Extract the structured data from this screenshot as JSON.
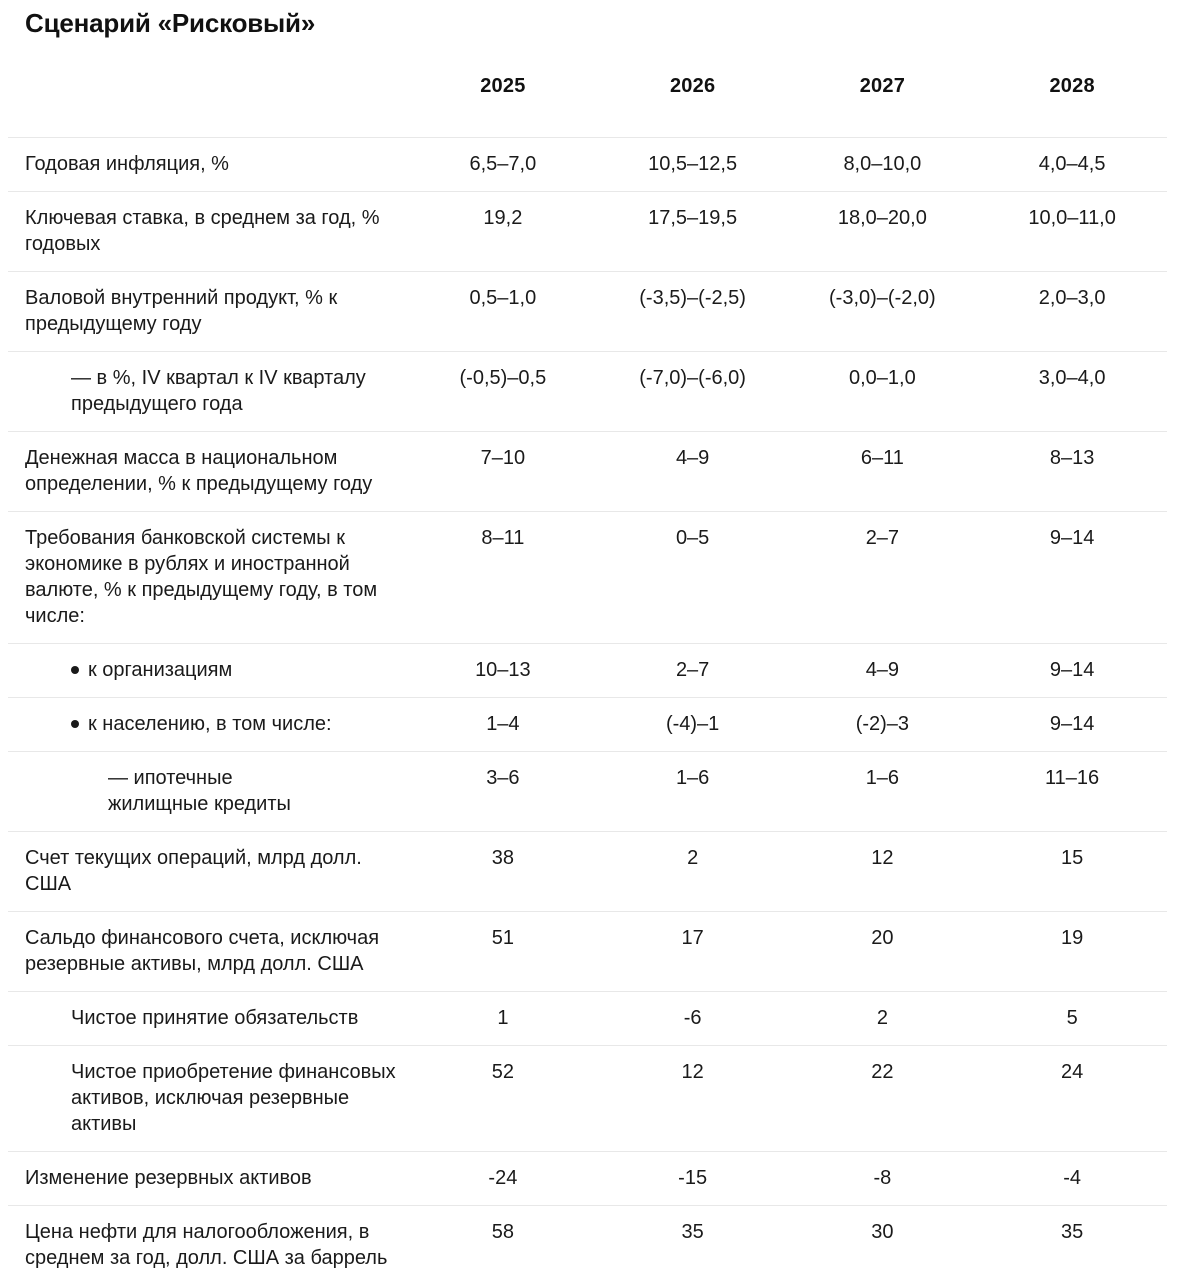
{
  "page": {
    "title": "Сценарий «Рисковый»"
  },
  "theme": {
    "text": "#1a1a1a",
    "title": "#111111",
    "divider": "#e8e8e8",
    "background": "#ffffff"
  },
  "chart_data": {
    "type": "table",
    "title": "Сценарий «Рисковый»",
    "categories": [
      "2025",
      "2026",
      "2027",
      "2028"
    ],
    "series": [
      {
        "name": "Годовая инфляция, %",
        "values": [
          "6,5–7,0",
          "10,5–12,5",
          "8,0–10,0",
          "4,0–4,5"
        ]
      },
      {
        "name": "Ключевая ставка, в среднем за год, % годовых",
        "values": [
          "19,2",
          "17,5–19,5",
          "18,0–20,0",
          "10,0–11,0"
        ]
      },
      {
        "name": "Валовой внутренний продукт, % к предыдущему году",
        "values": [
          "0,5–1,0",
          "(-3,5)–(-2,5)",
          "(-3,0)–(-2,0)",
          "2,0–3,0"
        ]
      },
      {
        "name": "— в %, IV квартал к IV кварталу предыдущего года",
        "values": [
          "(-0,5)–0,5",
          "(-7,0)–(-6,0)",
          "0,0–1,0",
          "3,0–4,0"
        ]
      },
      {
        "name": "Денежная масса в национальном определении, % к предыдущему году",
        "values": [
          "7–10",
          "4–9",
          "6–11",
          "8–13"
        ]
      },
      {
        "name": "Требования банковской системы к экономике в рублях и иностранной валюте, % к предыдущему году, в том числе:",
        "values": [
          "8–11",
          "0–5",
          "2–7",
          "9–14"
        ]
      },
      {
        "name": "к организациям",
        "values": [
          "10–13",
          "2–7",
          "4–9",
          "9–14"
        ]
      },
      {
        "name": "к населению, в том числе:",
        "values": [
          "1–4",
          "(-4)–1",
          "(-2)–3",
          "9–14"
        ]
      },
      {
        "name": "— ипотечные жилищные кредиты",
        "values": [
          "3–6",
          "1–6",
          "1–6",
          "11–16"
        ]
      },
      {
        "name": "Счет текущих операций, млрд долл. США",
        "values": [
          "38",
          "2",
          "12",
          "15"
        ]
      },
      {
        "name": "Сальдо финансового счета, исключая резервные активы, млрд долл. США",
        "values": [
          "51",
          "17",
          "20",
          "19"
        ]
      },
      {
        "name": "Чистое принятие обязательств",
        "values": [
          "1",
          "-6",
          "2",
          "5"
        ]
      },
      {
        "name": "Чистое приобретение финансовых активов, исключая резервные активы",
        "values": [
          "52",
          "12",
          "22",
          "24"
        ]
      },
      {
        "name": "Изменение резервных активов",
        "values": [
          "-24",
          "-15",
          "-8",
          "-4"
        ]
      },
      {
        "name": "Цена нефти для налогообложения, в среднем за год, долл. США за баррель",
        "values": [
          "58",
          "35",
          "30",
          "35"
        ]
      }
    ]
  },
  "table": {
    "years": [
      "2025",
      "2026",
      "2027",
      "2028"
    ],
    "rows": [
      {
        "label": "Годовая инфляция,  %",
        "indent": 0,
        "marker": "none",
        "values": [
          "6,5–7,0",
          "10,5–12,5",
          "8,0–10,0",
          "4,0–4,5"
        ]
      },
      {
        "label": "Ключевая ставка, в среднем за год, % годовых",
        "indent": 0,
        "marker": "none",
        "values": [
          "19,2",
          "17,5–19,5",
          "18,0–20,0",
          "10,0–11,0"
        ]
      },
      {
        "label": "Валовой внутренний продукт, % к предыдущему году",
        "indent": 0,
        "marker": "none",
        "values": [
          "0,5–1,0",
          "(-3,5)–(-2,5)",
          "(-3,0)–(-2,0)",
          "2,0–3,0"
        ]
      },
      {
        "label": "— в %, IV квартал к IV кварталу предыдущего года",
        "indent": 1,
        "marker": "none",
        "values": [
          "(-0,5)–0,5",
          "(-7,0)–(-6,0)",
          "0,0–1,0",
          "3,0–4,0"
        ]
      },
      {
        "label": "Денежная масса в национальном определении, % к предыдущему году",
        "indent": 0,
        "marker": "none",
        "values": [
          "7–10",
          "4–9",
          "6–11",
          "8–13"
        ]
      },
      {
        "label": "Требования банковской системы к экономике в рублях и иностранной валюте, % к предыдущему году, в том числе:",
        "indent": 0,
        "marker": "none",
        "values": [
          "8–11",
          "0–5",
          "2–7",
          "9–14"
        ]
      },
      {
        "label": "к организациям",
        "indent": 1,
        "marker": "bullet",
        "values": [
          "10–13",
          "2–7",
          "4–9",
          "9–14"
        ]
      },
      {
        "label": "к населению, в том числе:",
        "indent": 1,
        "marker": "bullet",
        "values": [
          "1–4",
          "(-4)–1",
          "(-2)–3",
          "9–14"
        ]
      },
      {
        "label": "— ипотечные жилищные кредиты",
        "indent": 2,
        "marker": "none",
        "values": [
          "3–6",
          "1–6",
          "1–6",
          "11–16"
        ]
      },
      {
        "label": "Счет текущих операций, млрд долл. США",
        "indent": 0,
        "marker": "none",
        "values": [
          "38",
          "2",
          "12",
          "15"
        ]
      },
      {
        "label": "Сальдо финансового счета, исключая резервные активы, млрд долл. США",
        "indent": 0,
        "marker": "none",
        "values": [
          "51",
          "17",
          "20",
          "19"
        ]
      },
      {
        "label": "Чистое принятие обязательств",
        "indent": 1,
        "marker": "none",
        "values": [
          "1",
          "-6",
          "2",
          "5"
        ]
      },
      {
        "label": "Чистое приобретение финансовых активов, исключая резервные активы",
        "indent": 1,
        "marker": "none",
        "values": [
          "52",
          "12",
          "22",
          "24"
        ]
      },
      {
        "label": "Изменение резервных активов",
        "indent": 0,
        "marker": "none",
        "values": [
          "-24",
          "-15",
          "-8",
          "-4"
        ]
      },
      {
        "label": "Цена нефти для налогообложения, в среднем за год, долл. США за баррель",
        "indent": 0,
        "marker": "none",
        "values": [
          "58",
          "35",
          "30",
          "35"
        ]
      }
    ]
  }
}
